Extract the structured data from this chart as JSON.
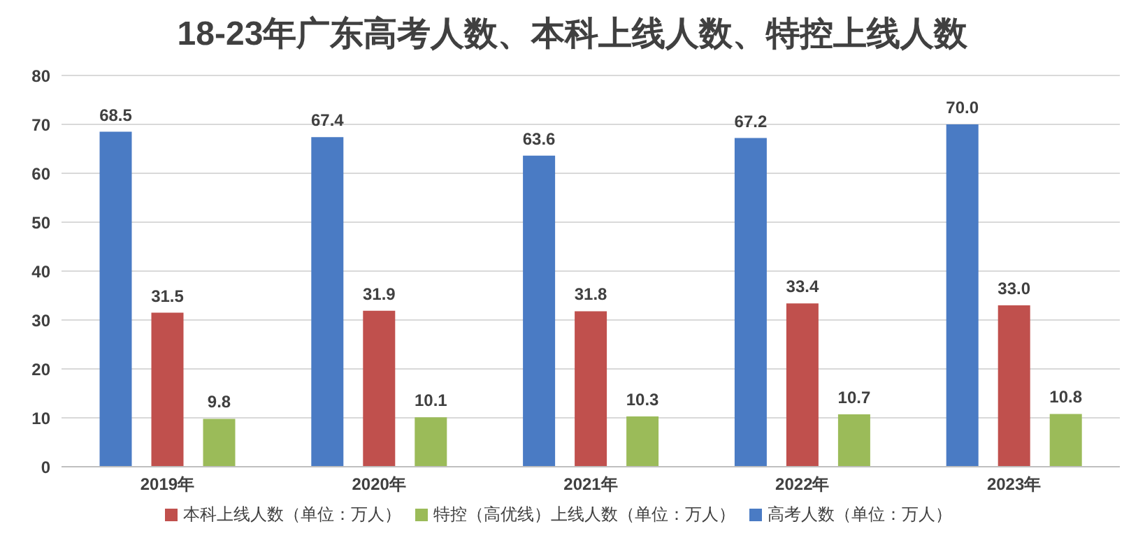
{
  "chart_data": {
    "type": "bar",
    "title": "18-23年广东高考人数、本科上线人数、特控上线人数",
    "categories": [
      "2019年",
      "2020年",
      "2021年",
      "2022年",
      "2023年"
    ],
    "series": [
      {
        "name": "高考人数（单位：万人）",
        "color": "#4a7bc4",
        "values": [
          68.5,
          67.4,
          63.6,
          67.2,
          70.0
        ],
        "value_labels": [
          "68.5",
          "67.4",
          "63.6",
          "67.2",
          "70.0"
        ]
      },
      {
        "name": "本科上线人数（单位：万人）",
        "color": "#c0504d",
        "values": [
          31.5,
          31.9,
          31.8,
          33.4,
          33.0
        ],
        "value_labels": [
          "31.5",
          "31.9",
          "31.8",
          "33.4",
          "33.0"
        ]
      },
      {
        "name": "特控（高优线）上线人数（单位：万人）",
        "color": "#9bbb59",
        "values": [
          9.8,
          10.1,
          10.3,
          10.7,
          10.8
        ],
        "value_labels": [
          "9.8",
          "10.1",
          "10.3",
          "10.7",
          "10.8"
        ]
      }
    ],
    "ylim": [
      0,
      80
    ],
    "yticks": [
      0,
      10,
      20,
      30,
      40,
      50,
      60,
      70,
      80
    ],
    "grid": "y",
    "legend": "bottom"
  }
}
